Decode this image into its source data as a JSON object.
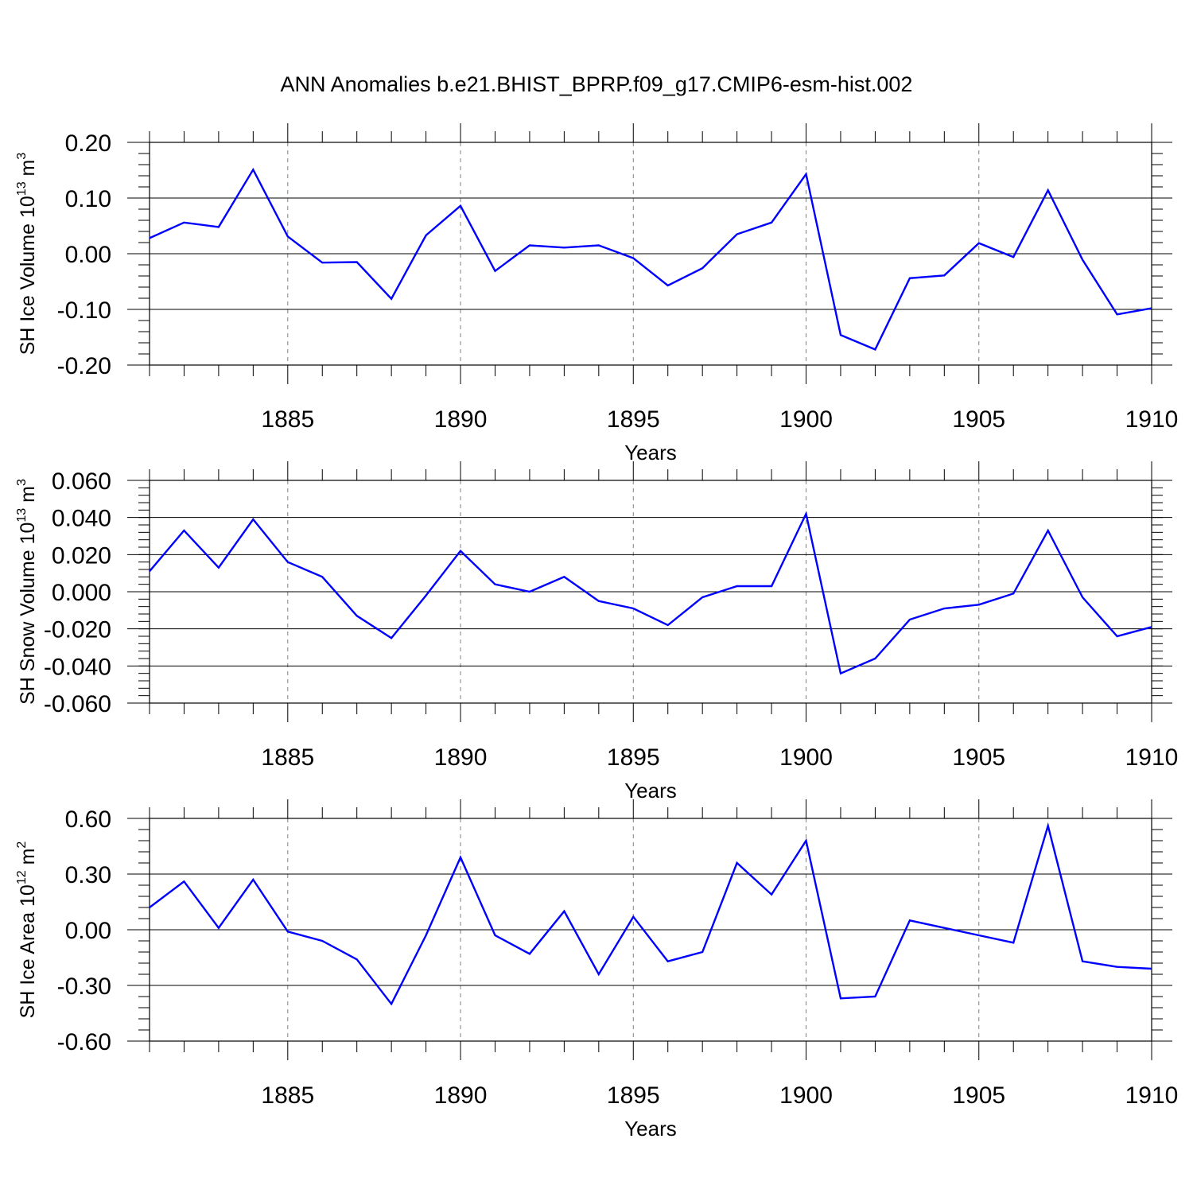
{
  "title": "ANN Anomalies b.e21.BHIST_BPRP.f09_g17.CMIP6-esm-hist.002",
  "colors": {
    "line": "#0000ff",
    "axes": "#000000",
    "grid": "#808080",
    "background": "#ffffff"
  },
  "chart_data": [
    {
      "type": "line",
      "ylabel": {
        "text": "SH Ice Volume 10",
        "exp": "13",
        "unit": " m",
        "unit_exp": "3"
      },
      "xlabel": "Years",
      "xlim": [
        1881,
        1910
      ],
      "ylim": [
        -0.2,
        0.2
      ],
      "yticks": [
        -0.2,
        -0.1,
        0.0,
        0.1,
        0.2
      ],
      "ytick_labels": [
        "-0.20",
        "-0.10",
        "0.00",
        "0.10",
        "0.20"
      ],
      "xticks": [
        1885,
        1890,
        1895,
        1900,
        1905,
        1910
      ],
      "xtick_labels": [
        "1885",
        "1890",
        "1895",
        "1900",
        "1905",
        "1910"
      ],
      "grid": "dashed vertical at labeled years",
      "x": [
        1881,
        1882,
        1883,
        1884,
        1885,
        1886,
        1887,
        1888,
        1889,
        1890,
        1891,
        1892,
        1893,
        1894,
        1895,
        1896,
        1897,
        1898,
        1899,
        1900,
        1901,
        1902,
        1903,
        1904,
        1905,
        1906,
        1907,
        1908,
        1909,
        1910
      ],
      "values": [
        0.028,
        0.056,
        0.048,
        0.151,
        0.031,
        -0.016,
        -0.015,
        -0.081,
        0.033,
        0.086,
        -0.031,
        0.015,
        0.011,
        0.015,
        -0.008,
        -0.057,
        -0.026,
        0.035,
        0.056,
        0.143,
        -0.146,
        -0.172,
        -0.044,
        -0.039,
        0.019,
        -0.006,
        0.114,
        -0.011,
        -0.109,
        -0.098
      ]
    },
    {
      "type": "line",
      "ylabel": {
        "text": "SH Snow Volume 10",
        "exp": "13",
        "unit": " m",
        "unit_exp": "3"
      },
      "xlabel": "Years",
      "xlim": [
        1881,
        1910
      ],
      "ylim": [
        -0.06,
        0.06
      ],
      "yticks": [
        -0.06,
        -0.04,
        -0.02,
        0.0,
        0.02,
        0.04,
        0.06
      ],
      "ytick_labels": [
        "-0.060",
        "-0.040",
        "-0.020",
        "0.000",
        "0.020",
        "0.040",
        "0.060"
      ],
      "xticks": [
        1885,
        1890,
        1895,
        1900,
        1905,
        1910
      ],
      "xtick_labels": [
        "1885",
        "1890",
        "1895",
        "1900",
        "1905",
        "1910"
      ],
      "grid": "dashed vertical at labeled years",
      "x": [
        1881,
        1882,
        1883,
        1884,
        1885,
        1886,
        1887,
        1888,
        1889,
        1890,
        1891,
        1892,
        1893,
        1894,
        1895,
        1896,
        1897,
        1898,
        1899,
        1900,
        1901,
        1902,
        1903,
        1904,
        1905,
        1906,
        1907,
        1908,
        1909,
        1910
      ],
      "values": [
        0.011,
        0.033,
        0.013,
        0.039,
        0.016,
        0.008,
        -0.013,
        -0.025,
        -0.002,
        0.022,
        0.004,
        0.0,
        0.008,
        -0.005,
        -0.009,
        -0.018,
        -0.003,
        0.003,
        0.003,
        0.042,
        -0.044,
        -0.036,
        -0.015,
        -0.009,
        -0.007,
        -0.001,
        0.033,
        -0.003,
        -0.024,
        -0.019
      ]
    },
    {
      "type": "line",
      "ylabel": {
        "text": "SH Ice Area 10",
        "exp": "12",
        "unit": " m",
        "unit_exp": "2"
      },
      "xlabel": "Years",
      "xlim": [
        1881,
        1910
      ],
      "ylim": [
        -0.6,
        0.6
      ],
      "yticks": [
        -0.6,
        -0.3,
        0.0,
        0.3,
        0.6
      ],
      "ytick_labels": [
        "-0.60",
        "-0.30",
        "0.00",
        "0.30",
        "0.60"
      ],
      "xticks": [
        1885,
        1890,
        1895,
        1900,
        1905,
        1910
      ],
      "xtick_labels": [
        "1885",
        "1890",
        "1895",
        "1900",
        "1905",
        "1910"
      ],
      "grid": "dashed vertical at labeled years",
      "x": [
        1881,
        1882,
        1883,
        1884,
        1885,
        1886,
        1887,
        1888,
        1889,
        1890,
        1891,
        1892,
        1893,
        1894,
        1895,
        1896,
        1897,
        1898,
        1899,
        1900,
        1901,
        1902,
        1903,
        1904,
        1905,
        1906,
        1907,
        1908,
        1909,
        1910
      ],
      "values": [
        0.12,
        0.26,
        0.01,
        0.27,
        -0.01,
        -0.06,
        -0.16,
        -0.4,
        -0.03,
        0.39,
        -0.03,
        -0.13,
        0.1,
        -0.24,
        0.07,
        -0.17,
        -0.12,
        0.36,
        0.19,
        0.48,
        -0.37,
        -0.36,
        0.05,
        0.01,
        -0.03,
        -0.07,
        0.56,
        -0.17,
        -0.2,
        -0.21
      ]
    }
  ]
}
